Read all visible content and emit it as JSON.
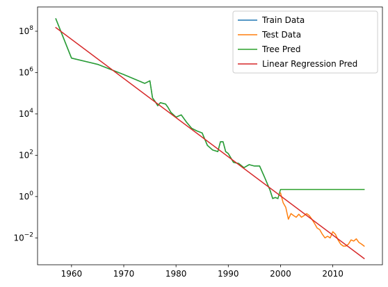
{
  "chart_data": {
    "type": "line",
    "xscale": "linear",
    "yscale": "log",
    "xlim": [
      1953.5,
      2019.5
    ],
    "ylim": [
      0.0005,
      1500000000.0
    ],
    "grid": false,
    "legend_position": "top-right",
    "x_ticks": [
      1960,
      1970,
      1980,
      1990,
      2000,
      2010
    ],
    "y_ticks": [
      {
        "value": 0.01,
        "mantissa": "10",
        "exponent": "−2"
      },
      {
        "value": 1,
        "mantissa": "10",
        "exponent": "0"
      },
      {
        "value": 100,
        "mantissa": "10",
        "exponent": "2"
      },
      {
        "value": 10000,
        "mantissa": "10",
        "exponent": "4"
      },
      {
        "value": 1000000,
        "mantissa": "10",
        "exponent": "6"
      },
      {
        "value": 100000000,
        "mantissa": "10",
        "exponent": "8"
      }
    ],
    "series": [
      {
        "name": "Train Data",
        "color": "#1f77b4",
        "points": [
          [
            1957,
            400000000
          ],
          [
            1960,
            5000000
          ],
          [
            1965,
            2500000
          ],
          [
            1970,
            800000
          ],
          [
            1974,
            300000
          ],
          [
            1975,
            400000
          ],
          [
            1975.5,
            60000
          ],
          [
            1976,
            40000
          ],
          [
            1976.5,
            25000
          ],
          [
            1977,
            35000
          ],
          [
            1978,
            30000
          ],
          [
            1978.5,
            20000
          ],
          [
            1979,
            12000
          ],
          [
            1980,
            7000
          ],
          [
            1981,
            9000
          ],
          [
            1982,
            4000
          ],
          [
            1983,
            2000
          ],
          [
            1984,
            1500
          ],
          [
            1985,
            1200
          ],
          [
            1986,
            300
          ],
          [
            1987,
            180
          ],
          [
            1988,
            150
          ],
          [
            1988.5,
            450
          ],
          [
            1989,
            450
          ],
          [
            1989.5,
            150
          ],
          [
            1990,
            120
          ],
          [
            1991,
            45
          ],
          [
            1992,
            40
          ],
          [
            1993,
            25
          ],
          [
            1994,
            35
          ],
          [
            1995,
            30
          ],
          [
            1996,
            30
          ],
          [
            1997,
            8
          ],
          [
            1998,
            2
          ],
          [
            1998.5,
            0.8
          ],
          [
            1999,
            0.9
          ],
          [
            1999.5,
            0.8
          ]
        ]
      },
      {
        "name": "Test Data",
        "color": "#ff7f0e",
        "points": [
          [
            2000,
            1.5
          ],
          [
            2000.5,
            0.5
          ],
          [
            2001,
            0.3
          ],
          [
            2001.5,
            0.08
          ],
          [
            2002,
            0.15
          ],
          [
            2002.5,
            0.12
          ],
          [
            2003,
            0.1
          ],
          [
            2003.5,
            0.14
          ],
          [
            2004,
            0.1
          ],
          [
            2004.5,
            0.12
          ],
          [
            2005,
            0.15
          ],
          [
            2005.5,
            0.12
          ],
          [
            2006,
            0.08
          ],
          [
            2006.5,
            0.05
          ],
          [
            2007,
            0.03
          ],
          [
            2007.5,
            0.025
          ],
          [
            2008,
            0.015
          ],
          [
            2008.5,
            0.01
          ],
          [
            2009,
            0.012
          ],
          [
            2009.5,
            0.01
          ],
          [
            2010,
            0.02
          ],
          [
            2010.5,
            0.015
          ],
          [
            2011,
            0.008
          ],
          [
            2011.5,
            0.005
          ],
          [
            2012,
            0.004
          ],
          [
            2012.5,
            0.004
          ],
          [
            2013,
            0.005
          ],
          [
            2013.5,
            0.008
          ],
          [
            2014,
            0.007
          ],
          [
            2014.5,
            0.009
          ],
          [
            2015,
            0.006
          ],
          [
            2015.5,
            0.005
          ],
          [
            2016,
            0.004
          ]
        ]
      },
      {
        "name": "Tree Pred",
        "color": "#2ca02c",
        "points": [
          [
            1957,
            400000000
          ],
          [
            1960,
            5000000
          ],
          [
            1965,
            2500000
          ],
          [
            1970,
            800000
          ],
          [
            1974,
            300000
          ],
          [
            1975,
            400000
          ],
          [
            1975.5,
            60000
          ],
          [
            1976,
            40000
          ],
          [
            1976.5,
            25000
          ],
          [
            1977,
            35000
          ],
          [
            1978,
            30000
          ],
          [
            1978.5,
            20000
          ],
          [
            1979,
            12000
          ],
          [
            1980,
            7000
          ],
          [
            1981,
            9000
          ],
          [
            1982,
            4000
          ],
          [
            1983,
            2000
          ],
          [
            1984,
            1500
          ],
          [
            1985,
            1200
          ],
          [
            1986,
            300
          ],
          [
            1987,
            180
          ],
          [
            1988,
            150
          ],
          [
            1988.5,
            450
          ],
          [
            1989,
            450
          ],
          [
            1989.5,
            150
          ],
          [
            1990,
            120
          ],
          [
            1991,
            45
          ],
          [
            1992,
            40
          ],
          [
            1993,
            25
          ],
          [
            1994,
            35
          ],
          [
            1995,
            30
          ],
          [
            1996,
            30
          ],
          [
            1997,
            8
          ],
          [
            1998,
            2
          ],
          [
            1998.5,
            0.8
          ],
          [
            1999,
            0.9
          ],
          [
            1999.5,
            0.8
          ],
          [
            2000,
            2.2
          ],
          [
            2016,
            2.2
          ]
        ]
      },
      {
        "name": "Linear Regression Pred",
        "color": "#d62728",
        "points": [
          [
            1957,
            150000000
          ],
          [
            2016,
            0.001
          ]
        ]
      }
    ]
  }
}
